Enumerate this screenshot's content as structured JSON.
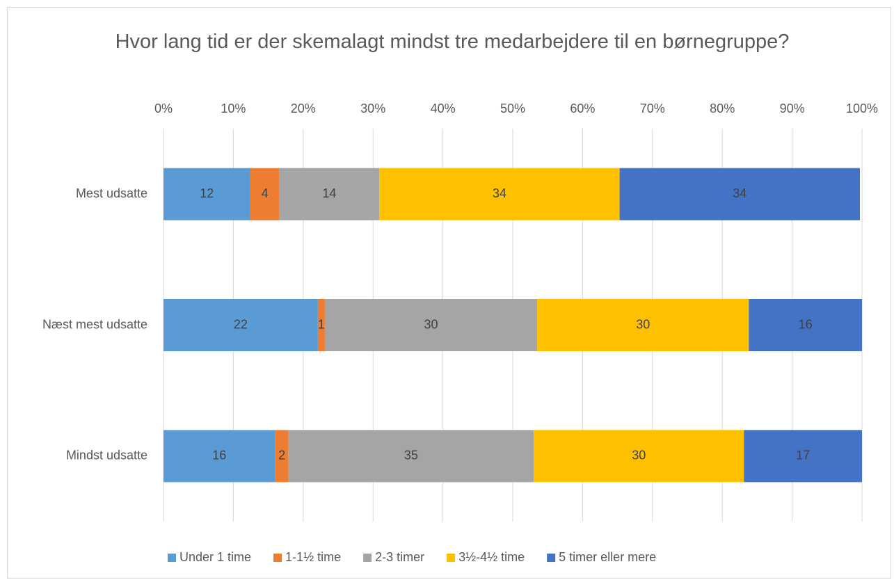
{
  "chart_data": {
    "type": "stacked-bar-horizontal",
    "title": "Hvor lang tid er der skemalagt mindst tre medarbejdere til en børnegruppe?",
    "categories": [
      "Mest udsatte",
      "Næst mest udsatte",
      "Mindst udsatte"
    ],
    "series": [
      {
        "name": "Under 1 time",
        "color": "#5b9bd5",
        "values": [
          12.4,
          22.1,
          16.0
        ],
        "value_labels": [
          "12",
          "22",
          "16"
        ]
      },
      {
        "name": "1-1½ time",
        "color": "#ed7d31",
        "values": [
          4.2,
          1.0,
          1.9
        ],
        "value_labels": [
          "4",
          "1",
          "2"
        ]
      },
      {
        "name": "2-3 timer",
        "color": "#a5a5a5",
        "values": [
          14.3,
          30.4,
          35.1
        ],
        "value_labels": [
          "14",
          "30",
          "35"
        ]
      },
      {
        "name": "3½-4½ time",
        "color": "#ffc000",
        "values": [
          34.4,
          30.3,
          30.1
        ],
        "value_labels": [
          "34",
          "30",
          "30"
        ]
      },
      {
        "name": "5 timer eller mere",
        "color": "#4472c4",
        "values": [
          34.4,
          16.2,
          16.9
        ],
        "value_labels": [
          "34",
          "16",
          "17"
        ]
      }
    ],
    "xlim": [
      0,
      100
    ],
    "xticks": [
      {
        "value": 0,
        "label": "0%"
      },
      {
        "value": 10,
        "label": "10%"
      },
      {
        "value": 20,
        "label": "20%"
      },
      {
        "value": 30,
        "label": "30%"
      },
      {
        "value": 40,
        "label": "40%"
      },
      {
        "value": 50,
        "label": "50%"
      },
      {
        "value": 60,
        "label": "60%"
      },
      {
        "value": 70,
        "label": "70%"
      },
      {
        "value": 80,
        "label": "80%"
      },
      {
        "value": 90,
        "label": "90%"
      },
      {
        "value": 100,
        "label": "100%"
      }
    ],
    "grid": true,
    "legend": "bottom"
  }
}
